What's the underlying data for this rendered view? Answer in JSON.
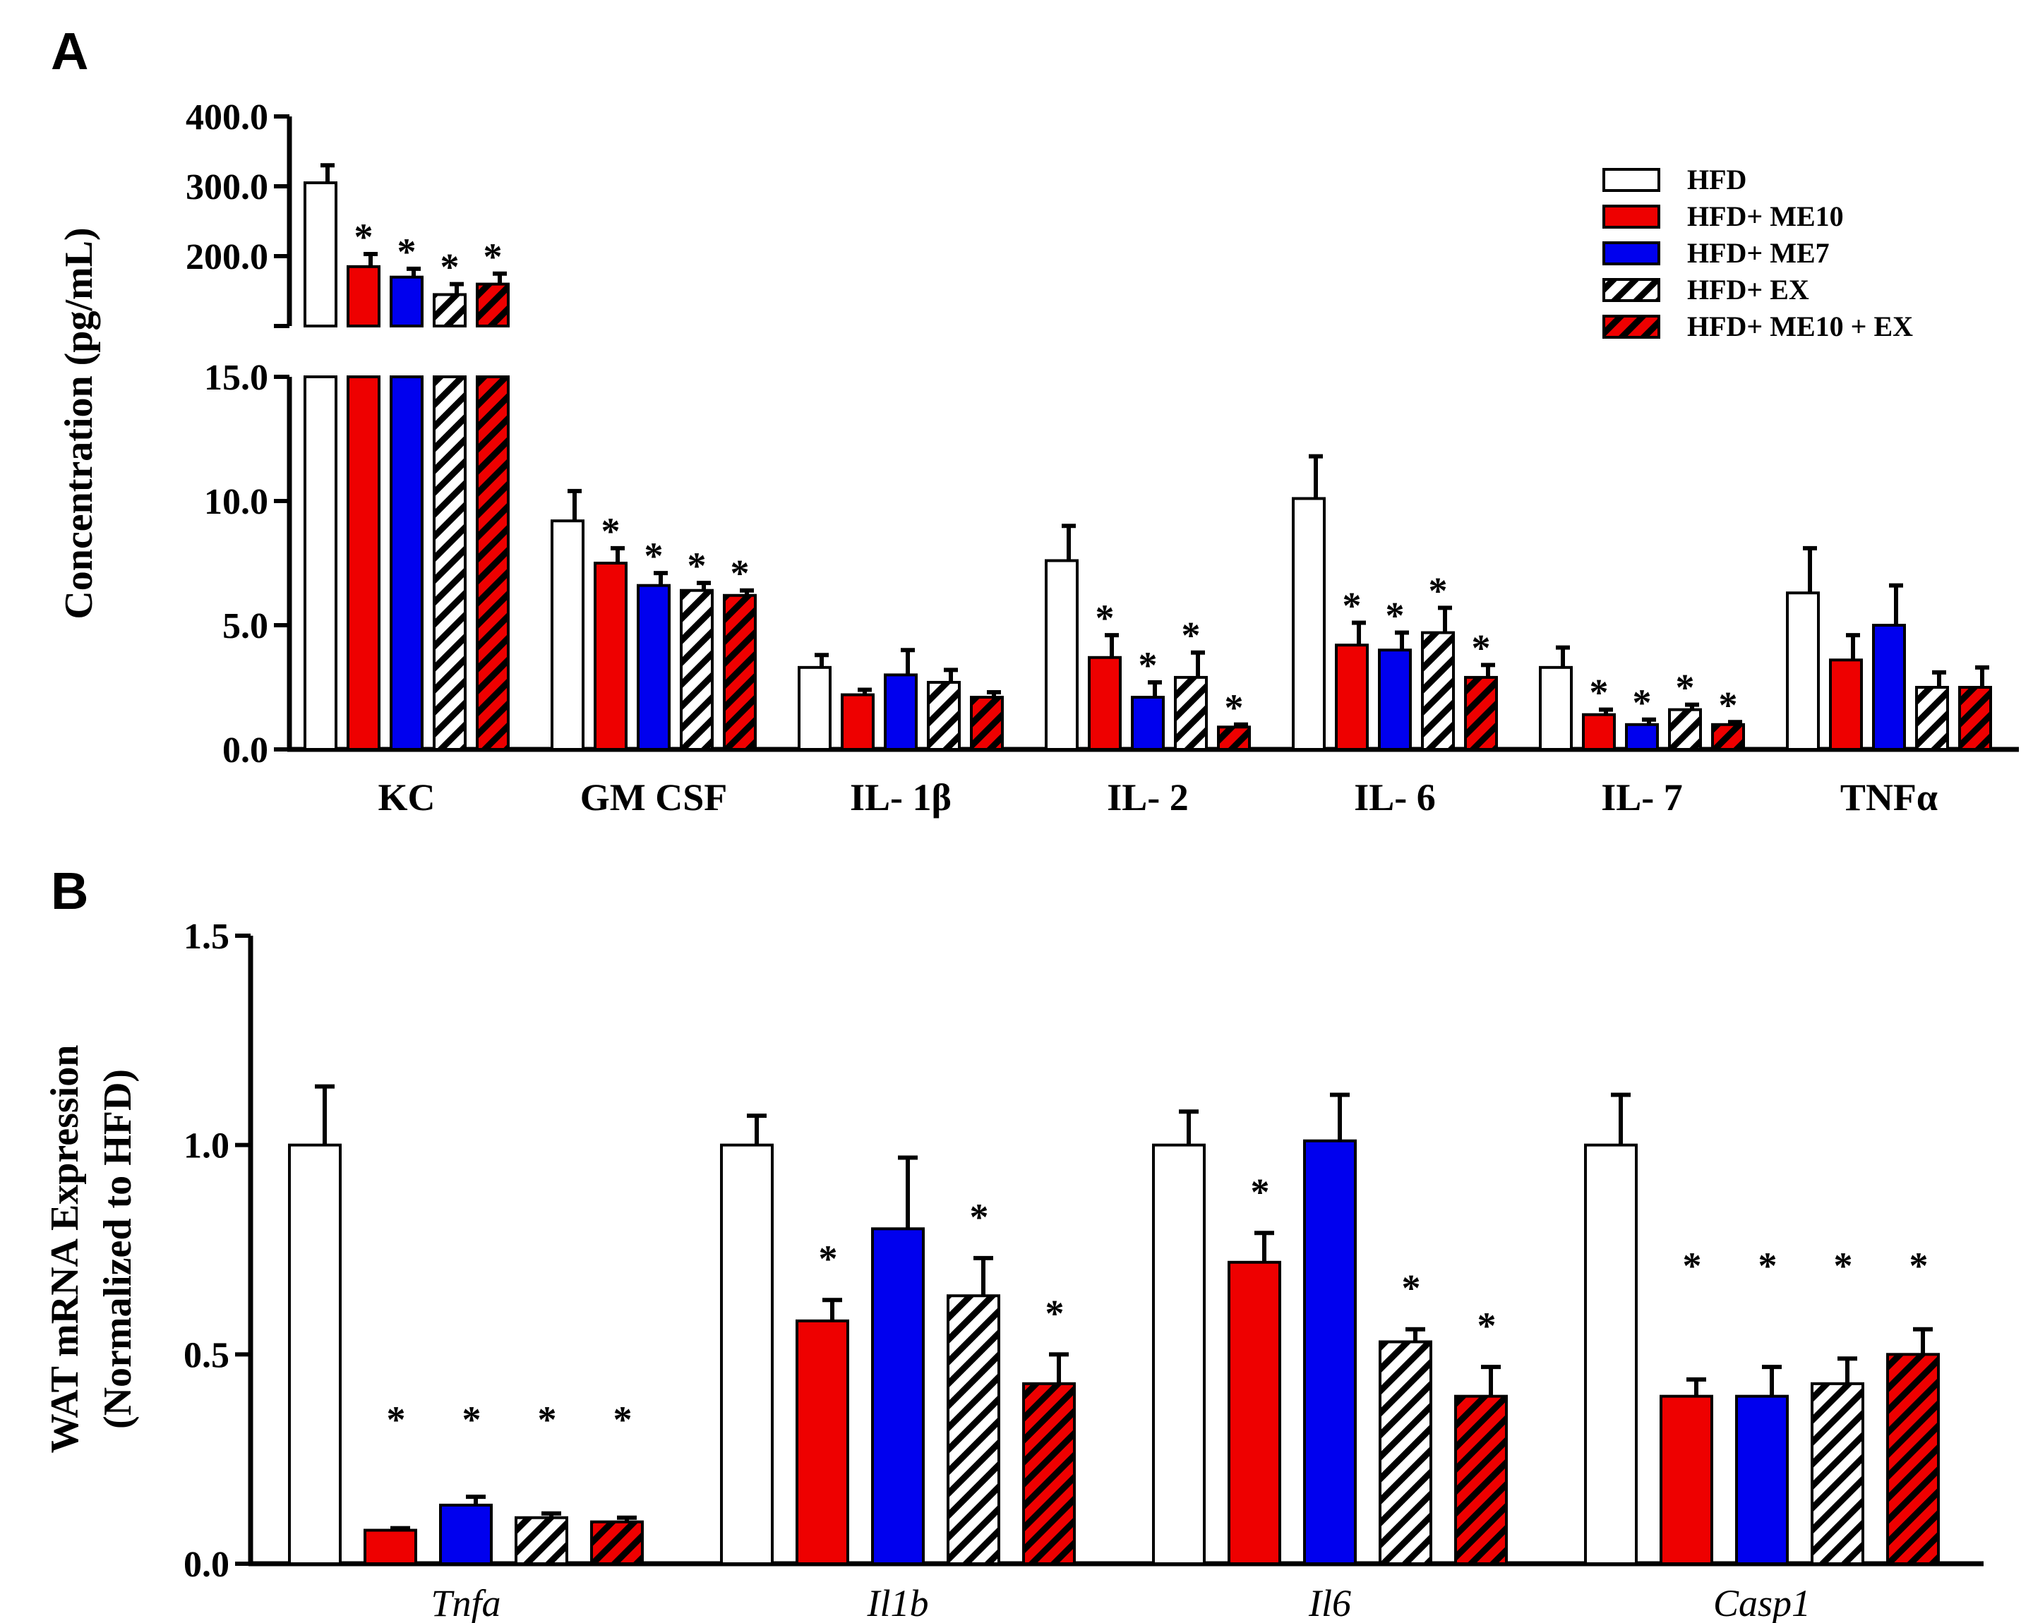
{
  "colors": {
    "HFD": "#ffffff",
    "HFD+ ME10": "#ee0000",
    "HFD+ ME7": "#0000ee",
    "HFD+ EX": "hatch-black",
    "HFD+ ME10 + EX": "hatch-red"
  },
  "legend": [
    "HFD",
    "HFD+ ME10",
    "HFD+ ME7",
    "HFD+ EX",
    "HFD+ ME10 + EX"
  ],
  "chart_data": [
    {
      "panel": "A",
      "type": "bar",
      "ylabel": "Concentration (pg/mL)",
      "axis_break": true,
      "ylim_lower": [
        0,
        15
      ],
      "ylim_upper": [
        100,
        400
      ],
      "yticks_lower": [
        "0.0",
        "5.0",
        "10.0",
        "15.0"
      ],
      "yticks_upper": [
        "200.0",
        "300.0",
        "400.0"
      ],
      "categories": [
        "KC",
        "GM CSF",
        "IL- 1β",
        "IL- 2",
        "IL- 6",
        "IL- 7",
        "TNFα"
      ],
      "series": [
        {
          "name": "HFD",
          "values": [
            305,
            9.2,
            3.3,
            7.6,
            10.1,
            3.3,
            6.3
          ],
          "errors": [
            25,
            1.2,
            0.5,
            1.4,
            1.7,
            0.8,
            1.8
          ],
          "sig": [
            false,
            false,
            false,
            false,
            false,
            false,
            false
          ]
        },
        {
          "name": "HFD+ ME10",
          "values": [
            185,
            7.5,
            2.2,
            3.7,
            4.2,
            1.4,
            3.6
          ],
          "errors": [
            18,
            0.6,
            0.2,
            0.9,
            0.9,
            0.2,
            1.0
          ],
          "sig": [
            true,
            true,
            false,
            true,
            true,
            true,
            false
          ]
        },
        {
          "name": "HFD+ ME7",
          "values": [
            170,
            6.6,
            3.0,
            2.1,
            4.0,
            1.0,
            5.0
          ],
          "errors": [
            12,
            0.5,
            1.0,
            0.6,
            0.7,
            0.2,
            1.6
          ],
          "sig": [
            true,
            true,
            false,
            true,
            true,
            true,
            false
          ]
        },
        {
          "name": "HFD+ EX",
          "values": [
            145,
            6.4,
            2.7,
            2.9,
            4.7,
            1.6,
            2.5
          ],
          "errors": [
            15,
            0.3,
            0.5,
            1.0,
            1.0,
            0.2,
            0.6
          ],
          "sig": [
            true,
            true,
            false,
            true,
            true,
            true,
            false
          ]
        },
        {
          "name": "HFD+ ME10 + EX",
          "values": [
            160,
            6.2,
            2.1,
            0.9,
            2.9,
            1.0,
            2.5
          ],
          "errors": [
            15,
            0.2,
            0.2,
            0.1,
            0.5,
            0.1,
            0.8
          ],
          "sig": [
            true,
            true,
            false,
            true,
            true,
            true,
            false
          ]
        }
      ]
    },
    {
      "panel": "B",
      "type": "bar",
      "ylabel_line1": "WAT mRNA Expression",
      "ylabel_line2": "(Normalized to HFD)",
      "ylim": [
        0,
        1.5
      ],
      "yticks": [
        "0.0",
        "0.5",
        "1.0",
        "1.5"
      ],
      "categories": [
        "Tnfa",
        "Il1b",
        "Il6",
        "Casp1"
      ],
      "series": [
        {
          "name": "HFD",
          "values": [
            1.0,
            1.0,
            1.0,
            1.0
          ],
          "errors": [
            0.14,
            0.07,
            0.08,
            0.12
          ],
          "sig": [
            false,
            false,
            false,
            false
          ]
        },
        {
          "name": "HFD+ ME10",
          "values": [
            0.08,
            0.58,
            0.72,
            0.4
          ],
          "errors": [
            0.005,
            0.05,
            0.07,
            0.04
          ],
          "sig": [
            true,
            true,
            true,
            true
          ]
        },
        {
          "name": "HFD+ ME7",
          "values": [
            0.14,
            0.8,
            1.01,
            0.4
          ],
          "errors": [
            0.02,
            0.17,
            0.11,
            0.07
          ],
          "sig": [
            true,
            false,
            false,
            true
          ]
        },
        {
          "name": "HFD+ EX",
          "values": [
            0.11,
            0.64,
            0.53,
            0.43
          ],
          "errors": [
            0.01,
            0.09,
            0.03,
            0.06
          ],
          "sig": [
            true,
            true,
            true,
            true
          ]
        },
        {
          "name": "HFD+ ME10 + EX",
          "values": [
            0.1,
            0.43,
            0.4,
            0.5
          ],
          "errors": [
            0.01,
            0.07,
            0.07,
            0.06
          ],
          "sig": [
            true,
            true,
            true,
            true
          ]
        }
      ]
    }
  ],
  "labels": {
    "panel_a": "A",
    "panel_b": "B",
    "sig_marker": "*"
  }
}
